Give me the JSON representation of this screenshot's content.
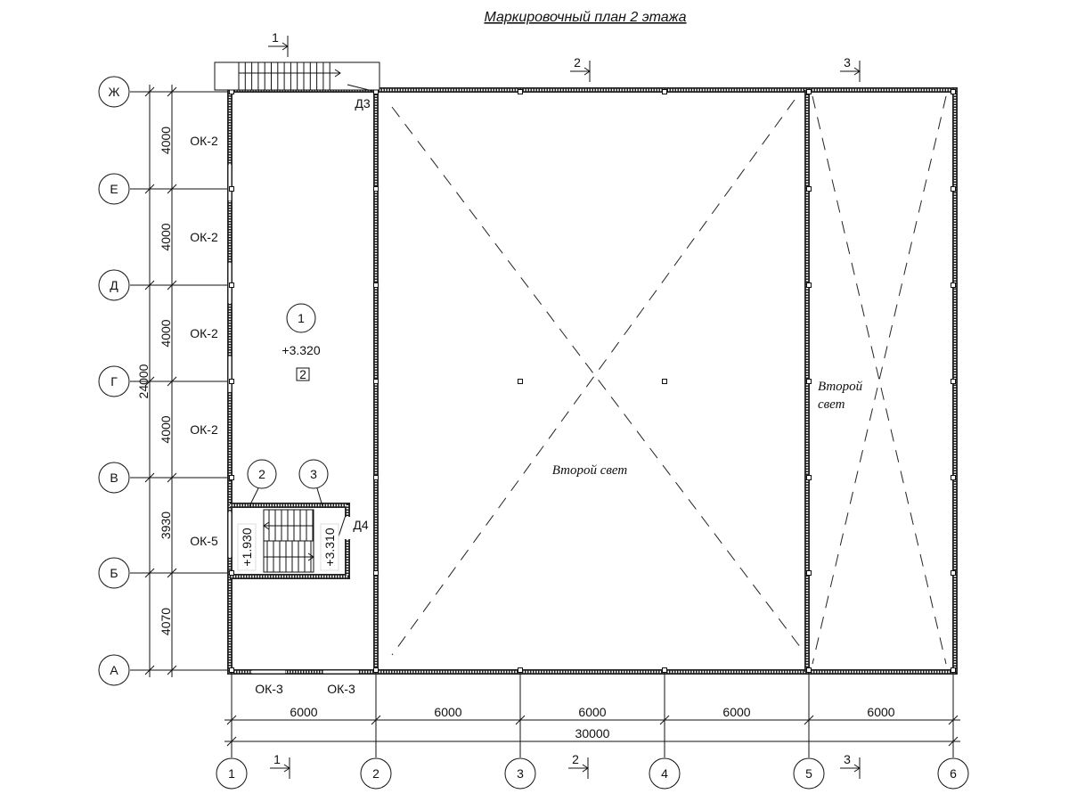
{
  "title": "Маркировочный план 2 этажа",
  "row_axes": [
    "Ж",
    "Е",
    "Д",
    "Г",
    "В",
    "Б",
    "А"
  ],
  "column_axes": [
    "1",
    "2",
    "3",
    "4",
    "5",
    "6"
  ],
  "row_dimensions": [
    "4000",
    "4000",
    "4000",
    "4000",
    "3930",
    "4070"
  ],
  "row_total": "24000",
  "column_dimensions": [
    "6000",
    "6000",
    "6000",
    "6000",
    "6000"
  ],
  "column_total": "30000",
  "windows_left": [
    "ОК-2",
    "ОК-2",
    "ОК-2",
    "ОК-2",
    "ОК-5"
  ],
  "windows_bottom": [
    "ОК-3",
    "ОК-3"
  ],
  "doors": [
    "Д3",
    "Д4"
  ],
  "rooms": [
    {
      "number": "1",
      "level": "+3.320",
      "tag": "2"
    },
    {
      "number": "2",
      "level": "+1.930"
    },
    {
      "number": "3",
      "level": "+3.310"
    }
  ],
  "double_height_label": "Второй свет",
  "double_height_label_small": [
    "Второй",
    "свет"
  ],
  "section_marks": [
    "1",
    "2",
    "3"
  ]
}
